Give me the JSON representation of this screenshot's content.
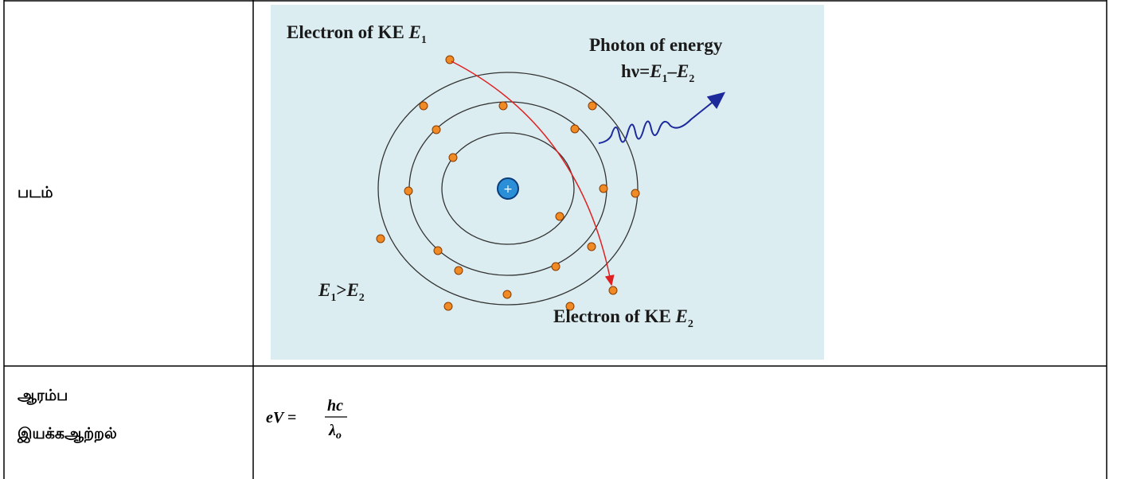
{
  "table": {
    "rows": [
      {
        "label": [
          "படம்"
        ]
      },
      {
        "label": [
          "ஆரம்ப",
          "இயக்கஆற்றல்"
        ],
        "formula": {
          "lhs": "eV =",
          "numerator": "hc",
          "denominator": "λ",
          "denominator_sub": "o"
        }
      }
    ]
  },
  "diagram": {
    "labels": [
      {
        "text": "Electron of KE ",
        "var": "E",
        "sub": "1"
      },
      {
        "text": "Photon of energy"
      },
      {
        "text": "hν=",
        "var": "E",
        "sub": "1",
        "op": "–",
        "var2": "E",
        "sub2": "2"
      },
      {
        "var": "E",
        "sub": "1",
        "op": ">",
        "var2": "E",
        "sub2": "2"
      },
      {
        "text": "Electron of KE ",
        "var": "E",
        "sub": "2"
      }
    ]
  }
}
